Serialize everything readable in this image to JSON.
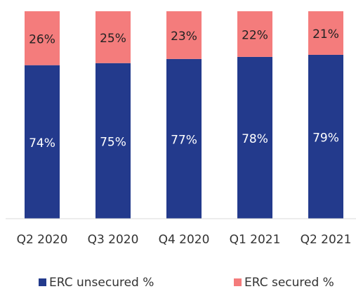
{
  "chart_data": {
    "type": "stacked_bar",
    "categories": [
      "Q2 2020",
      "Q3 2020",
      "Q4 2020",
      "Q1 2021",
      "Q2 2021"
    ],
    "series": [
      {
        "name": "ERC unsecured %",
        "color": "#233a8c",
        "values": [
          74,
          75,
          77,
          78,
          79
        ],
        "value_labels": [
          "74%",
          "75%",
          "77%",
          "78%",
          "79%"
        ]
      },
      {
        "name": "ERC secured %",
        "color": "#f47c7c",
        "values": [
          26,
          25,
          23,
          22,
          21
        ],
        "value_labels": [
          "26%",
          "25%",
          "23%",
          "22%",
          "21%"
        ]
      }
    ],
    "ylim": [
      0,
      100
    ]
  }
}
